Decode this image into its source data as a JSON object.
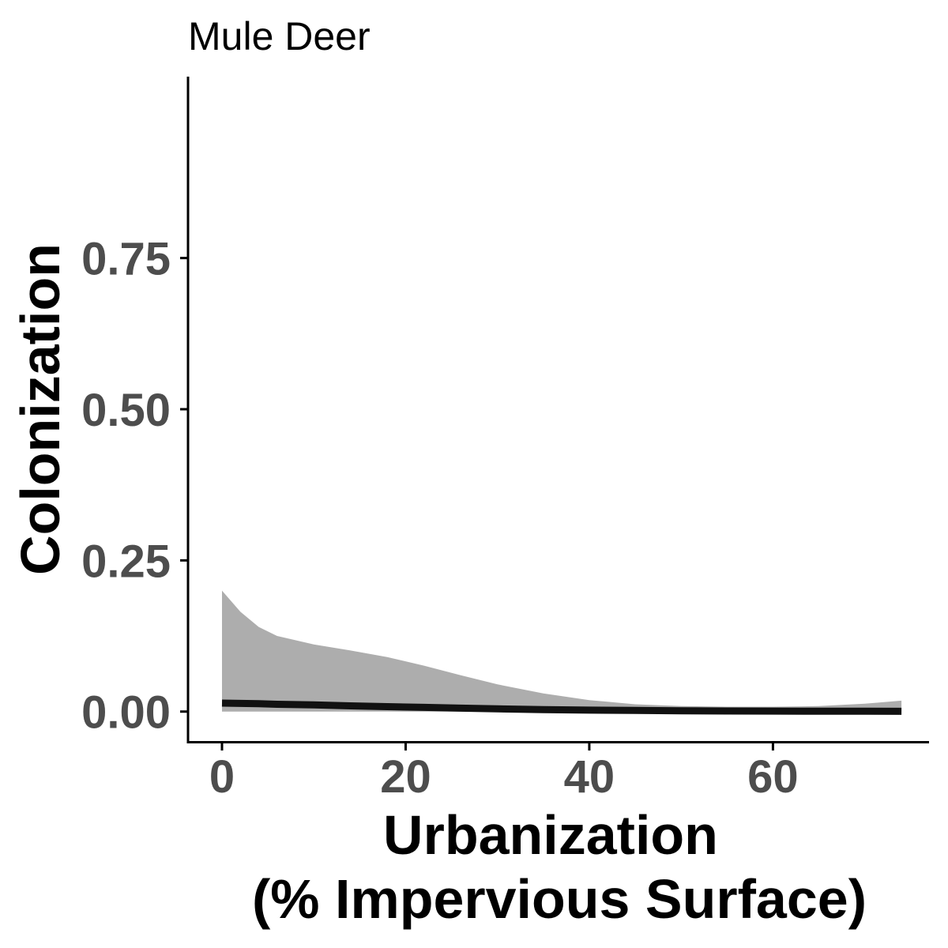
{
  "chart_data": {
    "type": "line",
    "title": "Mule Deer",
    "xlabel_lines": [
      "Urbanization",
      "(% Impervious Surface)"
    ],
    "ylabel": "Colonization",
    "xlim": [
      -3.7,
      77
    ],
    "ylim": [
      -0.05,
      1.05
    ],
    "xticks": [
      0,
      20,
      40,
      60
    ],
    "xtick_labels": [
      "0",
      "20",
      "40",
      "60"
    ],
    "yticks": [
      0,
      0.25,
      0.5,
      0.75
    ],
    "ytick_labels": [
      "0.00",
      "0.25",
      "0.50",
      "0.75"
    ],
    "grid": false,
    "legend": "none",
    "colors": {
      "line": "#111111",
      "ribbon": "#adadad",
      "axis": "#000000",
      "tick_label": "#4d4d4d"
    },
    "series": [
      {
        "x": [
          0,
          2,
          4,
          6,
          8,
          10,
          14,
          18,
          22,
          26,
          30,
          35,
          40,
          45,
          50,
          55,
          60,
          65,
          70,
          74
        ],
        "y": [
          0.014,
          0.0135,
          0.013,
          0.012,
          0.0115,
          0.011,
          0.0095,
          0.0082,
          0.007,
          0.0057,
          0.0045,
          0.0033,
          0.0024,
          0.0018,
          0.0013,
          0.001,
          0.0008,
          0.0006,
          0.0005,
          0.0004
        ],
        "lower": [
          0,
          0,
          0,
          0,
          0,
          0,
          0,
          0,
          0,
          0,
          0,
          0,
          0,
          0,
          0,
          0,
          0,
          0,
          0,
          0
        ],
        "upper": [
          0.2,
          0.165,
          0.14,
          0.125,
          0.118,
          0.111,
          0.101,
          0.09,
          0.076,
          0.06,
          0.045,
          0.03,
          0.019,
          0.012,
          0.009,
          0.008,
          0.008,
          0.009,
          0.013,
          0.018
        ]
      }
    ]
  }
}
